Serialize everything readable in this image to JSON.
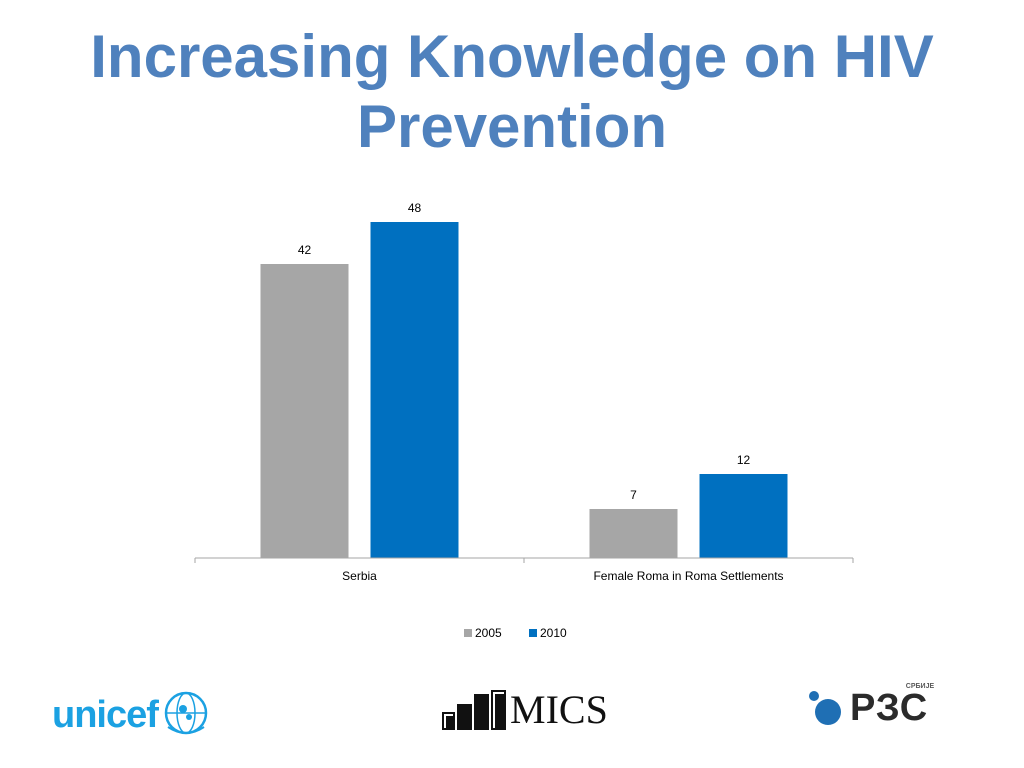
{
  "title_line1": "Increasing Knowledge on HIV",
  "title_line2": "Prevention",
  "chart_data": {
    "type": "bar",
    "categories": [
      "Serbia",
      "Female Roma in Roma Settlements"
    ],
    "series": [
      {
        "name": "2005",
        "values": [
          42,
          7
        ],
        "color": "#a6a6a6"
      },
      {
        "name": "2010",
        "values": [
          48,
          12
        ],
        "color": "#0070c0"
      }
    ],
    "ylim": [
      0,
      48
    ],
    "grid": false,
    "legend": "bottom",
    "data_labels": true
  },
  "logos": {
    "unicef": "unicef",
    "mics": "MICS",
    "rzs": "РЗС",
    "rzs_sub": "СРБИЈЕ"
  },
  "colors": {
    "title": "#4f81bd",
    "unicef": "#1ba1e2",
    "rzs_dot": "#1f6fb4"
  }
}
